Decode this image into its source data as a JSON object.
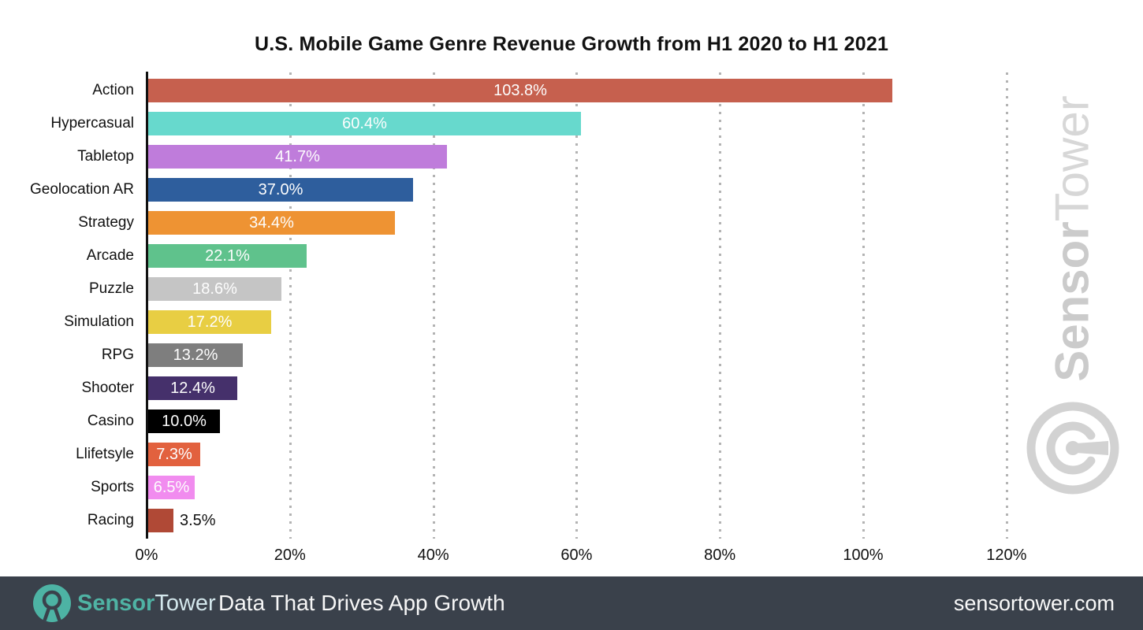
{
  "title": "U.S. Mobile Game Genre Revenue Growth from H1 2020 to H1 2021",
  "chart_data": {
    "type": "bar",
    "orientation": "horizontal",
    "categories": [
      "Action",
      "Hypercasual",
      "Tabletop",
      "Geolocation AR",
      "Strategy",
      "Arcade",
      "Puzzle",
      "Simulation",
      "RPG",
      "Shooter",
      "Casino",
      "Llifetsyle",
      "Sports",
      "Racing"
    ],
    "values": [
      103.8,
      60.4,
      41.7,
      37.0,
      34.4,
      22.1,
      18.6,
      17.2,
      13.2,
      12.4,
      10.0,
      7.3,
      6.5,
      3.5
    ],
    "value_labels": [
      "103.8%",
      "60.4%",
      "41.7%",
      "37.0%",
      "34.4%",
      "22.1%",
      "18.6%",
      "17.2%",
      "13.2%",
      "12.4%",
      "10.0%",
      "7.3%",
      "6.5%",
      "3.5%"
    ],
    "bar_colors": [
      "#c6604e",
      "#67d9cd",
      "#bf7cdb",
      "#2e5e9d",
      "#ee9333",
      "#5fc28c",
      "#c5c5c5",
      "#e8ce43",
      "#7e7e7e",
      "#45306b",
      "#000000",
      "#e2613e",
      "#f18cef",
      "#b04936"
    ],
    "xlabel": "",
    "ylabel": "",
    "xlim": [
      0,
      130
    ],
    "x_tick_labels": [
      "0%",
      "20%",
      "40%",
      "60%",
      "80%",
      "100%",
      "120%"
    ],
    "x_tick_values": [
      0,
      20,
      40,
      60,
      80,
      100,
      120
    ],
    "grid": "dotted-vertical",
    "grid_color": "#b3b3b3",
    "axis_color": "#111111",
    "value_label_color_inside": "#fdfdfd",
    "value_label_color_outside": "#111111"
  },
  "watermark": {
    "text_bold": "Sensor",
    "text_light": "Tower",
    "logo_icon": "sensortower-gauge-icon",
    "color": "#d2d2d2"
  },
  "footer": {
    "brand_sensor": "Sensor",
    "brand_tower": "Tower",
    "tagline": "Data That Drives App Growth",
    "website": "sensortower.com",
    "background": "#3a414b",
    "teal": "#4db3a4"
  }
}
